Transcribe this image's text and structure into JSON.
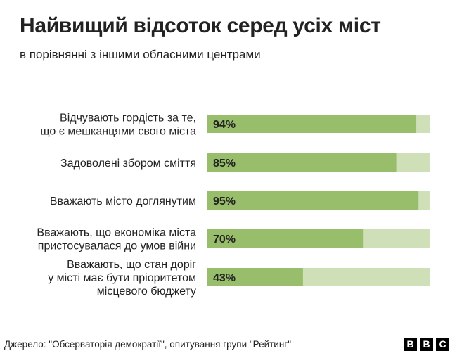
{
  "header": {
    "title": "Найвищий відсоток серед усіх міст",
    "subtitle": "в порівнянні з іншими обласними центрами"
  },
  "footer": {
    "source": "Джерело: \"Обсерваторія демократії\", опитування групи \"Рейтинг\"",
    "logo": [
      "B",
      "B",
      "C"
    ]
  },
  "colors": {
    "bar": "#98bd6b",
    "track": "#cfe0b8",
    "text": "#222222"
  },
  "chart_data": {
    "type": "bar",
    "orientation": "horizontal",
    "categories": [
      [
        "Відчувають гордість за те,",
        "що є мешканцями свого міста"
      ],
      [
        "Задоволені збором сміття"
      ],
      [
        "Вважають місто доглянутим"
      ],
      [
        "Вважають, що економіка міста",
        "пристосувалася до умов війни"
      ],
      [
        "Вважають, що стан доріг",
        "у місті має бути пріоритетом",
        "місцевого бюджету"
      ]
    ],
    "values": [
      94,
      85,
      95,
      70,
      43
    ],
    "value_labels": [
      "94%",
      "85%",
      "95%",
      "70%",
      "43%"
    ],
    "xlim": [
      0,
      100
    ]
  }
}
